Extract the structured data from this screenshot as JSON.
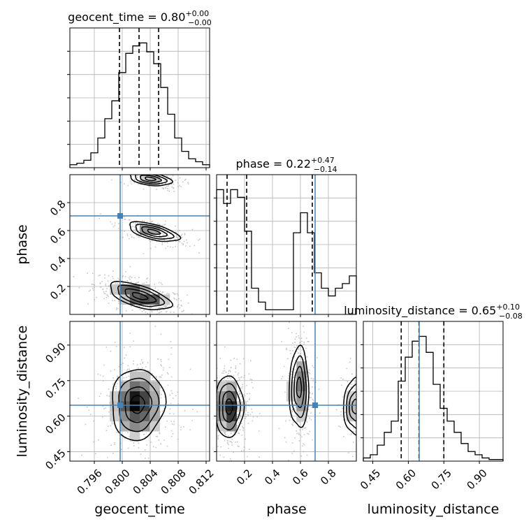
{
  "chart_data": {
    "type": "corner",
    "colors": {
      "truth": "#4682b4",
      "line": "#000000",
      "grid": "#b0b0b0",
      "scatter": "#a0a0a0"
    },
    "parameters": [
      {
        "name": "geocent_time",
        "axis_label": "geocent_time",
        "title_main": "geocent_time = 0.80",
        "title_plus": "+0.00",
        "title_minus": "−0.00",
        "range": [
          0.7925,
          0.8125
        ],
        "ticks": [
          0.796,
          0.8,
          0.804,
          0.808,
          0.812
        ],
        "tick_labels": [
          "0.796",
          "0.800",
          "0.804",
          "0.808",
          "0.812"
        ],
        "quantiles": [
          0.7996,
          0.8024,
          0.8052
        ],
        "truth": 0.7997,
        "hist": [
          2,
          3,
          5,
          10,
          20,
          33,
          45,
          64,
          77,
          82,
          84,
          78,
          70,
          54,
          36,
          20,
          11,
          6,
          4,
          2
        ]
      },
      {
        "name": "phase",
        "axis_label": "phase",
        "title_main": "phase = 0.22",
        "title_plus": "+0.47",
        "title_minus": "−0.14",
        "range": [
          0.0,
          1.0
        ],
        "ticks": [
          0.2,
          0.4,
          0.6,
          0.8
        ],
        "tick_labels": [
          "0.2",
          "0.4",
          "0.6",
          "0.8"
        ],
        "quantiles": [
          0.075,
          0.215,
          0.685
        ],
        "truth": 0.705,
        "hist": [
          81,
          72,
          81,
          76,
          54,
          17,
          8,
          3,
          3,
          3,
          3,
          53,
          66,
          53,
          27,
          17,
          12,
          17,
          20,
          25
        ]
      },
      {
        "name": "luminosity_distance",
        "axis_label": "luminosity_distance",
        "title_main": "luminosity_distance = 0.65",
        "title_plus": "+0.10",
        "title_minus": "−0.08",
        "range": [
          0.41,
          1.0
        ],
        "ticks": [
          0.45,
          0.6,
          0.75,
          0.9
        ],
        "tick_labels": [
          "0.45",
          "0.60",
          "0.75",
          "0.90"
        ],
        "quantiles": [
          0.57,
          0.645,
          0.75
        ],
        "truth": 0.646,
        "hist": [
          2,
          4,
          10,
          18,
          25,
          50,
          65,
          75,
          78,
          68,
          48,
          33,
          25,
          18,
          11,
          6,
          4,
          2,
          1,
          1
        ]
      }
    ],
    "pairs": [
      {
        "x": "geocent_time",
        "y": "phase",
        "y_range": [
          0.0,
          1.0
        ],
        "y_ticks": [
          0.2,
          0.4,
          0.6,
          0.8
        ],
        "y_tick_labels": [
          "0.2",
          "0.4",
          "0.6",
          "0.8"
        ],
        "blobs": [
          {
            "cx": 0.8025,
            "cy": 0.13,
            "sx": 0.0022,
            "sy": 0.05,
            "rho": -0.6,
            "weight": 1.0
          },
          {
            "cx": 0.8045,
            "cy": 0.59,
            "sx": 0.0018,
            "sy": 0.035,
            "rho": -0.6,
            "weight": 0.55
          },
          {
            "cx": 0.804,
            "cy": 0.97,
            "sx": 0.0015,
            "sy": 0.025,
            "rho": -0.4,
            "weight": 0.3
          }
        ]
      },
      {
        "x": "geocent_time",
        "y": "luminosity_distance",
        "blobs": [
          {
            "cx": 0.8022,
            "cy": 0.65,
            "sx": 0.0019,
            "sy": 0.075,
            "rho": 0.05,
            "weight": 1.0
          }
        ]
      },
      {
        "x": "phase",
        "y": "luminosity_distance",
        "blobs": [
          {
            "cx": 0.09,
            "cy": 0.64,
            "sx": 0.05,
            "sy": 0.065,
            "rho": 0.0,
            "weight": 1.0
          },
          {
            "cx": 0.59,
            "cy": 0.72,
            "sx": 0.035,
            "sy": 0.085,
            "rho": 0.0,
            "weight": 0.65
          },
          {
            "cx": 0.99,
            "cy": 0.64,
            "sx": 0.04,
            "sy": 0.06,
            "rho": 0.0,
            "weight": 0.35
          }
        ]
      }
    ]
  }
}
